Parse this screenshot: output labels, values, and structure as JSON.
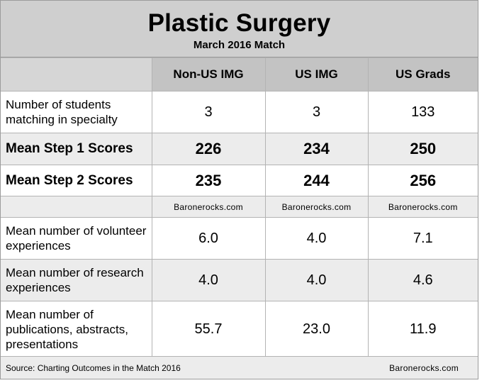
{
  "header": {
    "title": "Plastic Surgery",
    "subtitle": "March 2016 Match"
  },
  "columns": [
    "Non-US IMG",
    "US IMG",
    "US Grads"
  ],
  "rows": [
    {
      "label": "Number of students matching in specialty",
      "values": [
        "3",
        "3",
        "133"
      ],
      "style": "normal"
    },
    {
      "label": "Mean Step 1 Scores",
      "values": [
        "226",
        "234",
        "250"
      ],
      "style": "bold"
    },
    {
      "label": "Mean Step 2 Scores",
      "values": [
        "235",
        "244",
        "256"
      ],
      "style": "bold"
    },
    {
      "label": "",
      "values": [
        "Baronerocks.com",
        "Baronerocks.com",
        "Baronerocks.com"
      ],
      "style": "credit"
    },
    {
      "label": "Mean number of volunteer experiences",
      "values": [
        "6.0",
        "4.0",
        "7.1"
      ],
      "style": "normal"
    },
    {
      "label": "Mean number of research experiences",
      "values": [
        "4.0",
        "4.0",
        "4.6"
      ],
      "style": "normal"
    },
    {
      "label": "Mean number of publications, abstracts, presentations",
      "values": [
        "55.7",
        "23.0",
        "11.9"
      ],
      "style": "normal"
    }
  ],
  "footer": {
    "source": "Source: Charting Outcomes in the Match 2016",
    "brand": "Baronerocks.com"
  }
}
